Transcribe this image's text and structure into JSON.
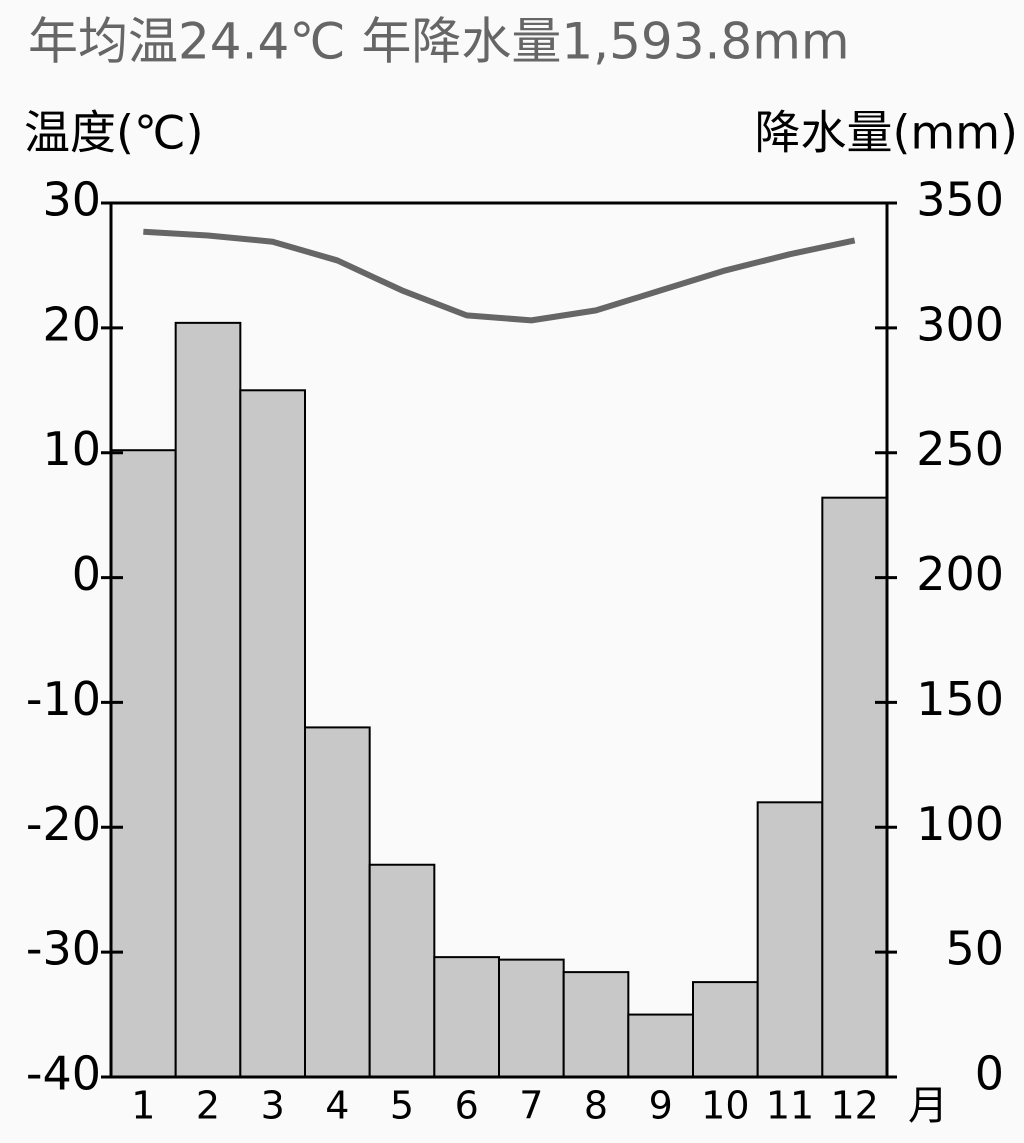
{
  "chart_data": {
    "type": "bar",
    "title": "年均温24.4℃ 年降水量1,593.8mm",
    "y_label": "温度(℃)",
    "y2_label": "降水量(mm)",
    "x_unit": "月",
    "categories": [
      "1",
      "2",
      "3",
      "4",
      "5",
      "6",
      "7",
      "8",
      "9",
      "10",
      "11",
      "12"
    ],
    "series": [
      {
        "type": "bar",
        "axis": "y2",
        "color": "#c8c8c8",
        "values": [
          251,
          302,
          275,
          140,
          85,
          48,
          47,
          42,
          25,
          38,
          110,
          232
        ]
      },
      {
        "type": "line",
        "color": "#666666",
        "values": [
          27.7,
          27.4,
          26.9,
          25.4,
          23.0,
          21.0,
          20.6,
          21.4,
          23.0,
          24.6,
          25.9,
          27.0
        ]
      }
    ],
    "ylim": [
      -40,
      30
    ],
    "yticks": [
      -40,
      -30,
      -20,
      -10,
      0,
      10,
      20,
      30
    ],
    "y2lim": [
      0,
      350
    ],
    "y2ticks": [
      0,
      50,
      100,
      150,
      200,
      250,
      300,
      350
    ]
  }
}
